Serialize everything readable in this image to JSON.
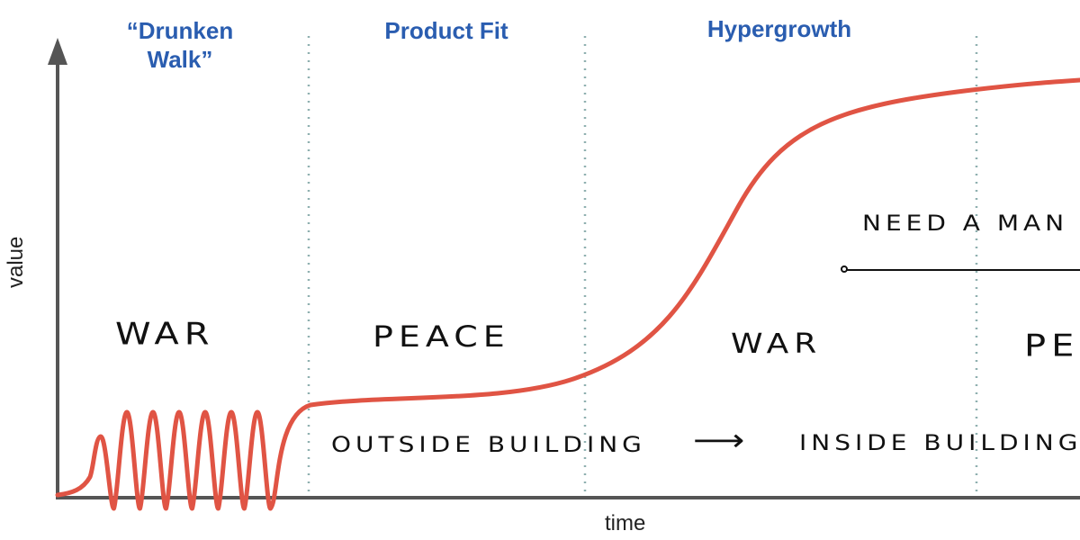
{
  "phases": [
    {
      "title": "“Drunken\nWalk”"
    },
    {
      "title": "Product Fit"
    },
    {
      "title": "Hypergrowth"
    }
  ],
  "modes": [
    "WAR",
    "PEACE",
    "WAR",
    "PE"
  ],
  "annotations": {
    "building": "OUTSIDE BUILDING",
    "arrow": "⟶",
    "inside": "INSIDE BUILDING",
    "manager": "NEED A MAN"
  },
  "axes": {
    "x_label": "time",
    "y_label": "value"
  },
  "colors": {
    "curve": "#e05444",
    "axis": "#555555",
    "title": "#2a5db0",
    "divider": "#8fb0b0"
  }
}
